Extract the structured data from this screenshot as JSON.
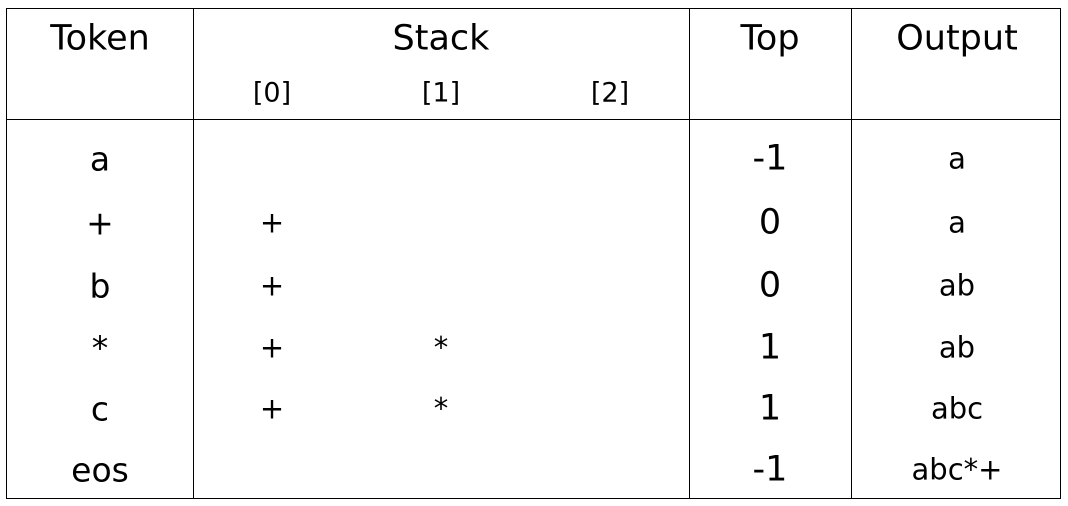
{
  "headers": {
    "token": "Token",
    "stack": "Stack",
    "top": "Top",
    "output": "Output",
    "stack_indices": [
      "[0]",
      "[1]",
      "[2]"
    ]
  },
  "rows": [
    {
      "token": "a",
      "stack": [
        "",
        "",
        ""
      ],
      "top": "-1",
      "output": "a"
    },
    {
      "token": "+",
      "stack": [
        "+",
        "",
        ""
      ],
      "top": "0",
      "output": "a"
    },
    {
      "token": "b",
      "stack": [
        "+",
        "",
        ""
      ],
      "top": "0",
      "output": "ab"
    },
    {
      "token": "*",
      "stack": [
        "+",
        "*",
        ""
      ],
      "top": "1",
      "output": "ab"
    },
    {
      "token": "c",
      "stack": [
        "+",
        "*",
        ""
      ],
      "top": "1",
      "output": "abc"
    },
    {
      "token": "eos",
      "stack": [
        "",
        "",
        ""
      ],
      "top": "-1",
      "output": "abc*+"
    }
  ]
}
